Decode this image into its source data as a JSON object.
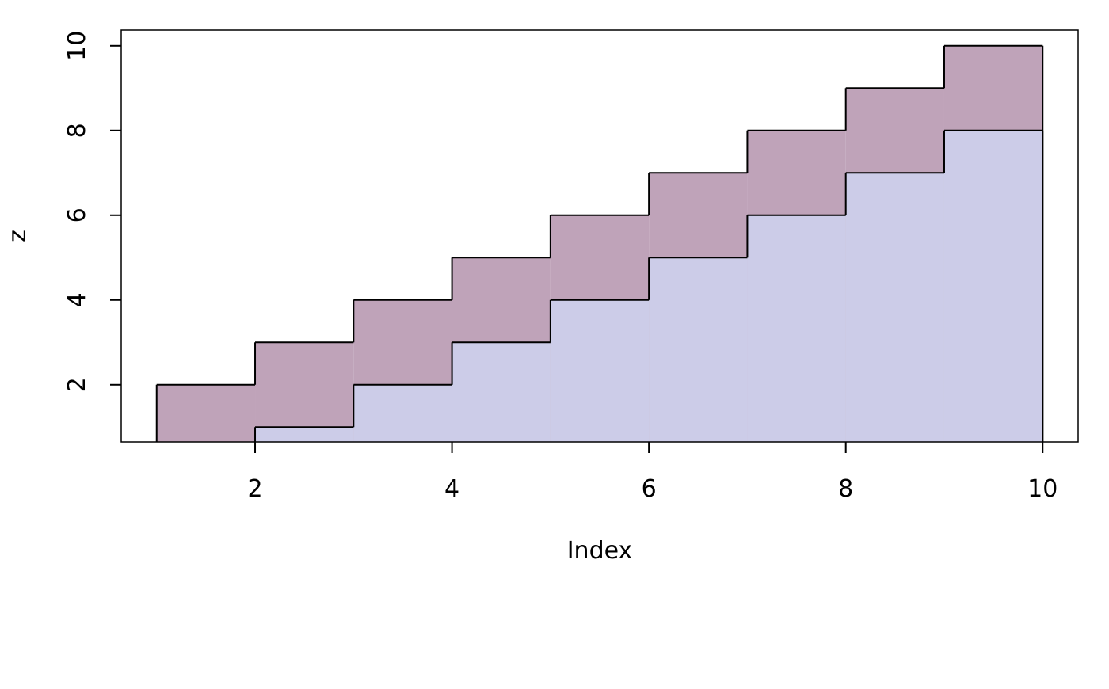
{
  "chart_data": {
    "type": "area",
    "step": true,
    "x_label": "Index",
    "y_label": "z",
    "x": [
      1,
      2,
      3,
      4,
      5,
      6,
      7,
      8,
      9,
      10
    ],
    "series": [
      {
        "color": "#bfa3b9",
        "values": [
          2,
          3,
          4,
          5,
          6,
          7,
          8,
          9,
          10,
          10
        ]
      },
      {
        "color": "#cccce8",
        "values": [
          null,
          1,
          2,
          3,
          4,
          5,
          6,
          7,
          8,
          8
        ]
      }
    ],
    "xlim": [
      0.64,
      10.36
    ],
    "ylim": [
      0.65,
      10.37
    ],
    "xticks": [
      2,
      4,
      6,
      8,
      10
    ],
    "yticks": [
      2,
      4,
      6,
      8,
      10
    ]
  }
}
